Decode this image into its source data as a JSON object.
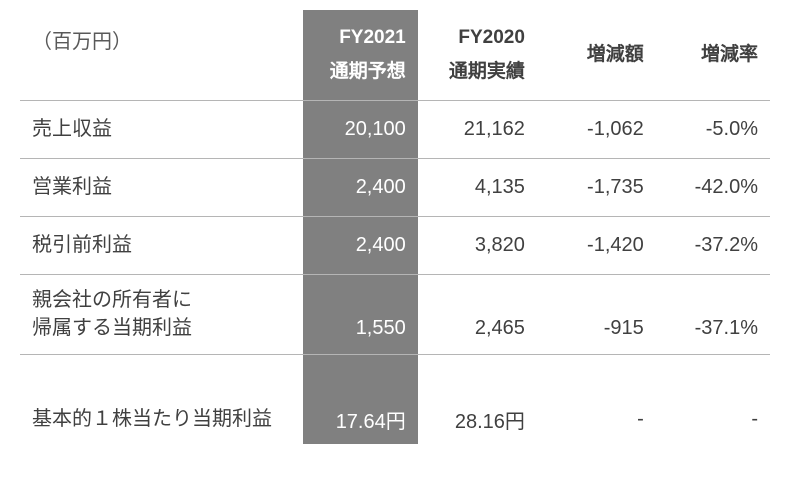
{
  "table": {
    "unit_label": "（百万円）",
    "headers": {
      "fy2021": "FY2021<br>通期予想",
      "fy2020": "FY2020<br>通期実績",
      "diff_amount": "増減額",
      "diff_rate": "増減率"
    },
    "rows": [
      {
        "label": "売上収益",
        "fy2021": "20,100",
        "fy2020": "21,162",
        "diff": "-1,062",
        "rate": "-5.0%"
      },
      {
        "label": "営業利益",
        "fy2021": "2,400",
        "fy2020": "4,135",
        "diff": "-1,735",
        "rate": "-42.0%"
      },
      {
        "label": "税引前利益",
        "fy2021": "2,400",
        "fy2020": "3,820",
        "diff": "-1,420",
        "rate": "-37.2%"
      },
      {
        "label": "親会社の所有者に<br>帰属する当期利益",
        "fy2021": "1,550",
        "fy2020": "2,465",
        "diff": "-915",
        "rate": "-37.1%"
      }
    ],
    "eps_row": {
      "label": "基本的１株当たり当期利益",
      "fy2021": "17.64円",
      "fy2020": "28.16円",
      "diff": "-",
      "rate": "-"
    },
    "colors": {
      "highlight_bg": "#808080",
      "highlight_fg": "#ffffff",
      "text_dark": "#404040",
      "text_gray": "#595959",
      "border": "#b5b5b5",
      "background": "#ffffff"
    },
    "font_sizes": {
      "header": 19,
      "body": 20
    }
  }
}
